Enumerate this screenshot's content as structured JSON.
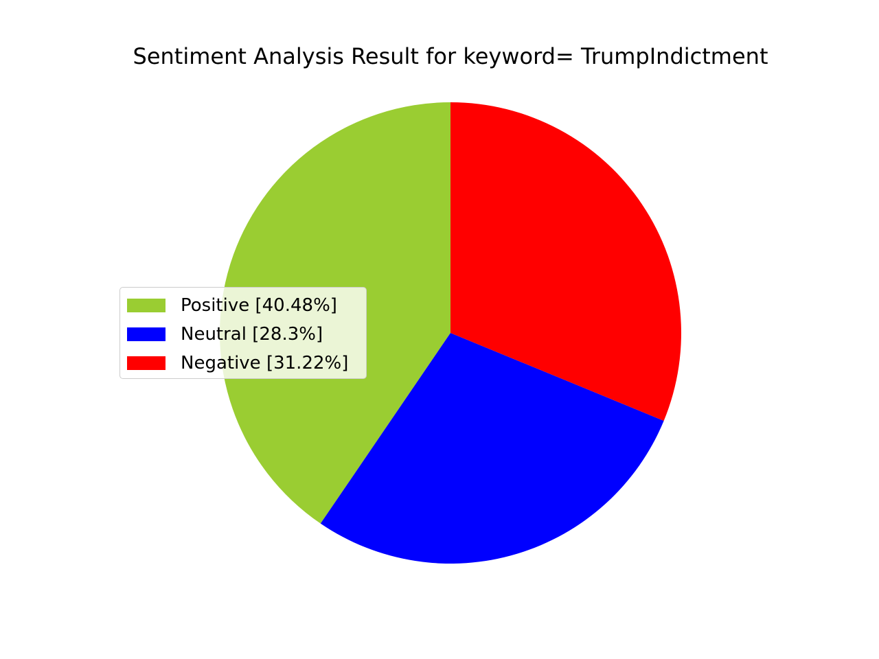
{
  "chart_data": {
    "type": "pie",
    "title": "Sentiment Analysis Result for keyword= TrumpIndictment",
    "categories": [
      "Positive",
      "Neutral",
      "Negative"
    ],
    "values": [
      40.48,
      28.3,
      31.22
    ],
    "colors": [
      "#9acd32",
      "#0000ff",
      "#ff0000"
    ],
    "legend_labels": [
      "Positive [40.48%]",
      "Neutral [28.3%]",
      "Negative [31.22%]"
    ],
    "start_angle_deg": 90,
    "direction": "counterclockwise",
    "legend_position": "center-left"
  }
}
